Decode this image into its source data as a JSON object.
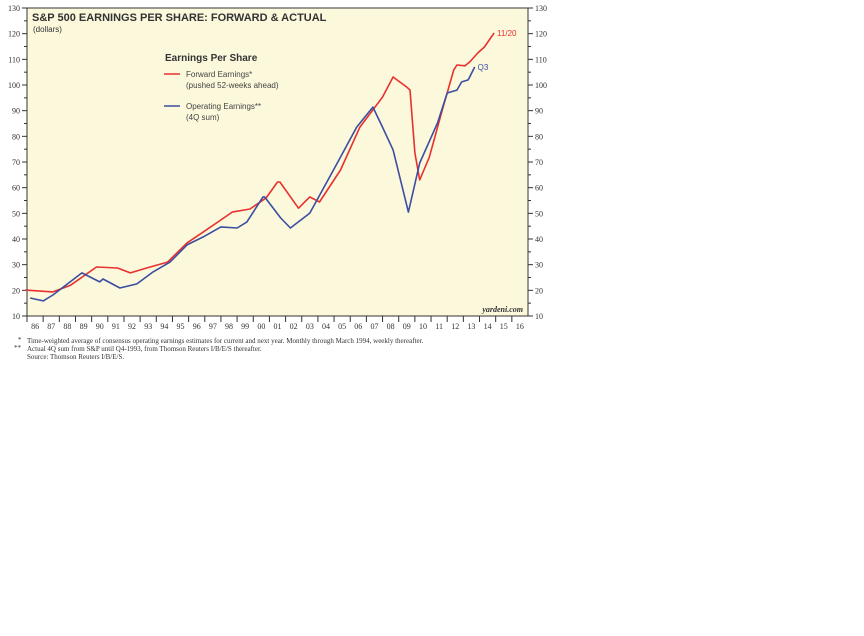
{
  "chart_data": {
    "type": "line",
    "title": "S&P 500 EARNINGS PER SHARE: FORWARD & ACTUAL",
    "subtitle": "(dollars)",
    "legend_title": "Earnings Per Share",
    "legend_placement": "top-center",
    "ylim": [
      10,
      130
    ],
    "yticks": [
      10,
      20,
      30,
      40,
      50,
      60,
      70,
      80,
      90,
      100,
      110,
      120,
      130
    ],
    "xlim": [
      1986,
      2017
    ],
    "xtick_labels": [
      "86",
      "87",
      "88",
      "89",
      "90",
      "91",
      "92",
      "93",
      "94",
      "95",
      "96",
      "97",
      "98",
      "99",
      "00",
      "01",
      "02",
      "03",
      "04",
      "05",
      "06",
      "07",
      "08",
      "09",
      "10",
      "11",
      "12",
      "13",
      "14",
      "15",
      "16"
    ],
    "background": "#fbf8dc",
    "series": [
      {
        "name": "Forward Earnings*",
        "name_line2": "(pushed 52-weeks ahead)",
        "color": "#e8312e",
        "end_label": "11/20",
        "x": [
          1985.9,
          1987.6,
          1988.7,
          1990.3,
          1991.6,
          1992.4,
          1993.4,
          1994.7,
          1995.9,
          1996.9,
          1998.7,
          1999.8,
          2000.8,
          2001.5,
          2001.65,
          2002.8,
          2003.5,
          2004.1,
          2005.4,
          2006.6,
          2008.0,
          2008.65,
          2009.5,
          2009.7,
          2010.0,
          2010.3,
          2010.9,
          2011.7,
          2012.4,
          2012.6,
          2013.1,
          2013.4,
          2013.9,
          2014.3,
          2014.9
        ],
        "y": [
          20.1,
          19.4,
          22,
          29.1,
          28.7,
          26.8,
          28.7,
          31,
          38.5,
          42.7,
          50.5,
          51.7,
          56,
          62.2,
          62.2,
          52,
          56.4,
          54.4,
          66.9,
          83.6,
          95.3,
          103.1,
          99.2,
          98,
          73.5,
          63,
          72,
          90.3,
          105.8,
          107.8,
          107.5,
          109,
          112.5,
          114.8,
          120.3
        ]
      },
      {
        "name": "Operating Earnings**",
        "name_line2": "(4Q sum)",
        "color": "#3b4ea0",
        "end_label": "Q3",
        "x": [
          1986.2,
          1987,
          1987.6,
          1989.4,
          1990.5,
          1990.7,
          1991.75,
          1992.8,
          1993.8,
          1994.85,
          1995.9,
          1996.9,
          1998,
          1999,
          1999.6,
          2000.6,
          2000.7,
          2001.7,
          2002.3,
          2003.5,
          2005.2,
          2006.4,
          2007.4,
          2008.0,
          2008.65,
          2009.6,
          2010.3,
          2011.4,
          2012.0,
          2012.6,
          2012.9,
          2013.3,
          2013.7
        ],
        "y": [
          17,
          15.9,
          18.2,
          26.8,
          23.3,
          24.4,
          20.9,
          22.5,
          27.2,
          31,
          37.7,
          40.8,
          44.7,
          44.3,
          46.6,
          56.4,
          56.4,
          48.2,
          44.3,
          50.1,
          69.6,
          83.6,
          91.4,
          83.6,
          74.7,
          50.5,
          69.6,
          85.2,
          96.9,
          98,
          101.2,
          102,
          107
        ]
      }
    ],
    "watermark": "yardeni.com",
    "footnotes": [
      {
        "mark": "*",
        "text": "Time-weighted average of consensus operating earnings estimates for current and next year. Monthly through March 1994, weekly thereafter."
      },
      {
        "mark": "**",
        "text": "Actual 4Q sum from S&P until Q4-1993, from Thomson Reuters I/B/E/S thereafter."
      },
      {
        "mark": "",
        "text": "Source: Thomson Reuters I/B/E/S."
      }
    ]
  }
}
